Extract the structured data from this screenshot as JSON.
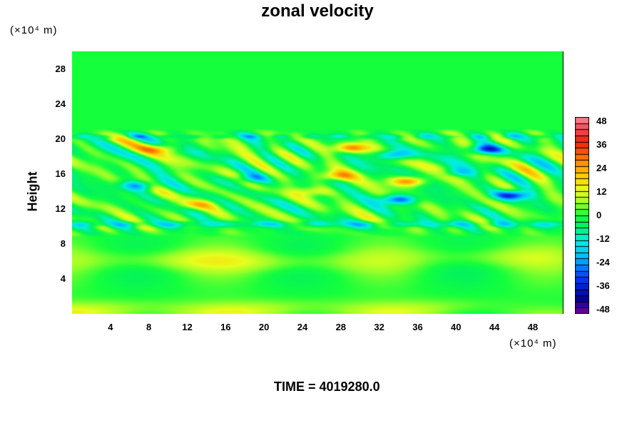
{
  "chart_data": {
    "type": "heatmap",
    "title": "zonal velocity",
    "ylabel": "Height",
    "xlabel": "",
    "y_unit": "(×10⁴ m)",
    "x_unit": "(×10⁴ m)",
    "x_ticks": [
      "4",
      "8",
      "12",
      "16",
      "20",
      "24",
      "28",
      "32",
      "36",
      "40",
      "44",
      "48"
    ],
    "y_ticks": [
      "4",
      "8",
      "12",
      "16",
      "20",
      "24",
      "28"
    ],
    "xlim": [
      0,
      51.2
    ],
    "ylim": [
      0,
      30
    ],
    "colorbar": {
      "ticks": [
        "48",
        "36",
        "24",
        "12",
        "0",
        "-12",
        "-24",
        "-36",
        "-48"
      ],
      "range": [
        -48,
        48
      ]
    },
    "features": [
      {
        "x": 29,
        "y": 19.0,
        "value": 26
      },
      {
        "x": 9,
        "y": 18.9,
        "value": 18
      },
      {
        "x": 33.5,
        "y": 18.2,
        "value": -26
      },
      {
        "x": 43,
        "y": 18.8,
        "value": -30
      },
      {
        "x": 35,
        "y": 15.2,
        "value": 28
      },
      {
        "x": 34,
        "y": 13.1,
        "value": -30
      },
      {
        "x": 45.8,
        "y": 13.6,
        "value": -32
      },
      {
        "x": 6.8,
        "y": 14.7,
        "value": -22
      },
      {
        "x": 27.5,
        "y": 15.8,
        "value": 20
      },
      {
        "x": 18.5,
        "y": 15.5,
        "value": -16
      },
      {
        "x": 25,
        "y": 14.0,
        "value": 14
      },
      {
        "x": 13,
        "y": 12.5,
        "value": 14
      },
      {
        "x": 40,
        "y": 16.2,
        "value": -14
      },
      {
        "x": 9,
        "y": 6.2,
        "value": 9
      },
      {
        "x": 23,
        "y": 6.0,
        "value": 8
      },
      {
        "x": 43,
        "y": 6.5,
        "value": 8
      },
      {
        "x": 2,
        "y": 0.3,
        "value": 10
      },
      {
        "x": 19,
        "y": 0.4,
        "value": 9
      },
      {
        "x": 36,
        "y": 0.5,
        "value": 8
      }
    ]
  },
  "footer": {
    "time_label": "TIME = 4019280.0"
  }
}
